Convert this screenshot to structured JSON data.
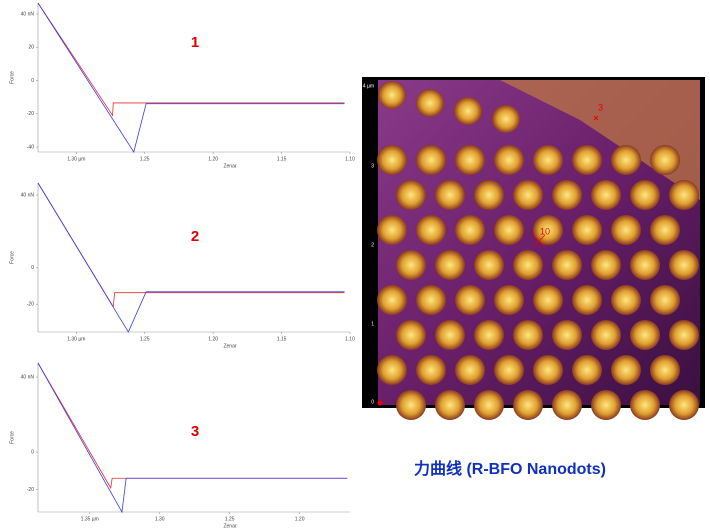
{
  "chart_data": [
    {
      "type": "line",
      "annotation": "1",
      "x_label": "Zenar",
      "y_label": "Force",
      "xlim": [
        1.328,
        1.1
      ],
      "ylim": [
        -43,
        46.6
      ],
      "xticks": [
        {
          "value": 1.3,
          "label": "1.30 µm"
        },
        1.25,
        {
          "value": 1.2,
          "label": "1.20"
        },
        1.15,
        {
          "value": 1.1,
          "label": "1.10"
        }
      ],
      "yticks": [
        {
          "value": 40,
          "label": "40 nN"
        },
        20,
        0,
        -20,
        -40
      ],
      "series": [
        {
          "color": "#e03030",
          "x": [
            1.328,
            1.2735,
            1.273,
            1.104
          ],
          "values": [
            46.6,
            -21,
            -13.5,
            -13.5
          ]
        },
        {
          "color": "#3a3aee",
          "x": [
            1.328,
            1.258,
            1.249,
            1.104
          ],
          "values": [
            46.6,
            -43,
            -14,
            -14
          ]
        }
      ]
    },
    {
      "type": "line",
      "annotation": "2",
      "x_label": "Zenar",
      "y_label": "Force",
      "xlim": [
        1.328,
        1.1
      ],
      "ylim": [
        -35.3,
        46.6
      ],
      "xticks": [
        {
          "value": 1.3,
          "label": "1.30 µm"
        },
        1.25,
        {
          "value": 1.2,
          "label": "1.20"
        },
        1.15,
        {
          "value": 1.1,
          "label": "1.10"
        }
      ],
      "yticks": [
        {
          "value": 40,
          "label": "40 nN"
        },
        0,
        -20
      ],
      "series": [
        {
          "color": "#e03030",
          "x": [
            1.328,
            1.273,
            1.272,
            1.104
          ],
          "values": [
            46.6,
            -21.4,
            -13.7,
            -13.7
          ]
        },
        {
          "color": "#3a3aee",
          "x": [
            1.328,
            1.262,
            1.249,
            1.104
          ],
          "values": [
            46.6,
            -35.3,
            -13.2,
            -13.2
          ]
        }
      ]
    },
    {
      "type": "line",
      "annotation": "3",
      "x_label": "Zenar",
      "y_label": "Force",
      "xlim": [
        1.387,
        1.164
      ],
      "ylim": [
        -32,
        47.5
      ],
      "xticks": [
        {
          "value": 1.35,
          "label": "1.35 µm"
        },
        {
          "value": 1.3,
          "label": "1.30"
        },
        1.25,
        {
          "value": 1.2,
          "label": "1.20"
        }
      ],
      "yticks": [
        {
          "value": 40,
          "label": "40 nN"
        },
        0,
        -20
      ],
      "series": [
        {
          "color": "#e03030",
          "x": [
            1.387,
            1.335,
            1.334,
            1.166
          ],
          "values": [
            47.5,
            -19.2,
            -14,
            -14
          ]
        },
        {
          "color": "#3a3aee",
          "x": [
            1.387,
            1.327,
            1.324,
            1.166
          ],
          "values": [
            47.5,
            -32,
            -14,
            -14
          ]
        }
      ]
    }
  ],
  "afm_image": {
    "axis_labels": [
      "4 µm",
      "3",
      "2",
      "1",
      "0"
    ],
    "markers": [
      "3",
      "10"
    ]
  },
  "slide_title": "力曲线 (R-BFO Nanodots)"
}
